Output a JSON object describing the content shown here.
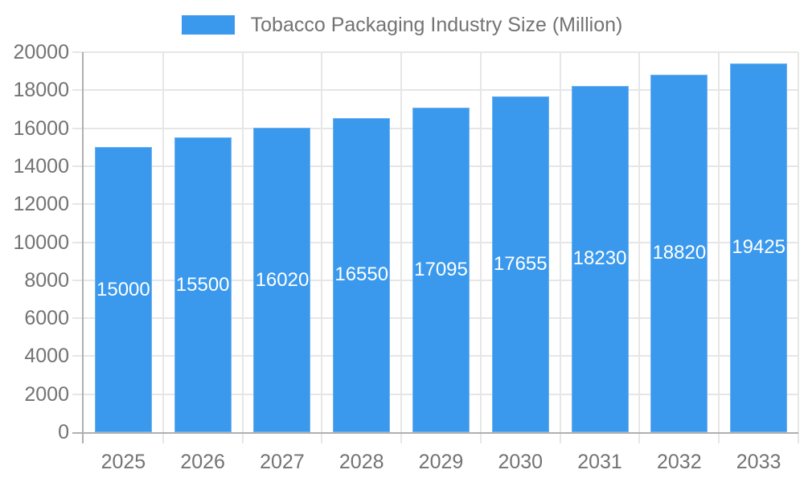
{
  "legend": {
    "label": "Tobacco Packaging Industry Size (Million)"
  },
  "chart_data": {
    "type": "bar",
    "title": "Tobacco Packaging Industry Size (Million)",
    "series_name": "Tobacco Packaging Industry Size (Million)",
    "categories": [
      "2025",
      "2026",
      "2027",
      "2028",
      "2029",
      "2030",
      "2031",
      "2032",
      "2033"
    ],
    "values": [
      15000,
      15500,
      16020,
      16550,
      17095,
      17655,
      18230,
      18820,
      19425
    ],
    "value_labels": [
      "15000",
      "15500",
      "16020",
      "16550",
      "17095",
      "17655",
      "18230",
      "18820",
      "19425"
    ],
    "xlabel": "",
    "ylabel": "",
    "ylim": [
      0,
      20000
    ],
    "y_ticks": [
      0,
      2000,
      4000,
      6000,
      8000,
      10000,
      12000,
      14000,
      16000,
      18000,
      20000
    ],
    "grid": true,
    "legend_position": "top",
    "bar_color": "#3A99EC",
    "bar_border_color": "#6FB1EF",
    "value_label_color": "#FFFFFF",
    "grid_color": "#E6E6E6",
    "axis_line_color": "#B0B0B0",
    "tick_label_color": "#737373"
  }
}
